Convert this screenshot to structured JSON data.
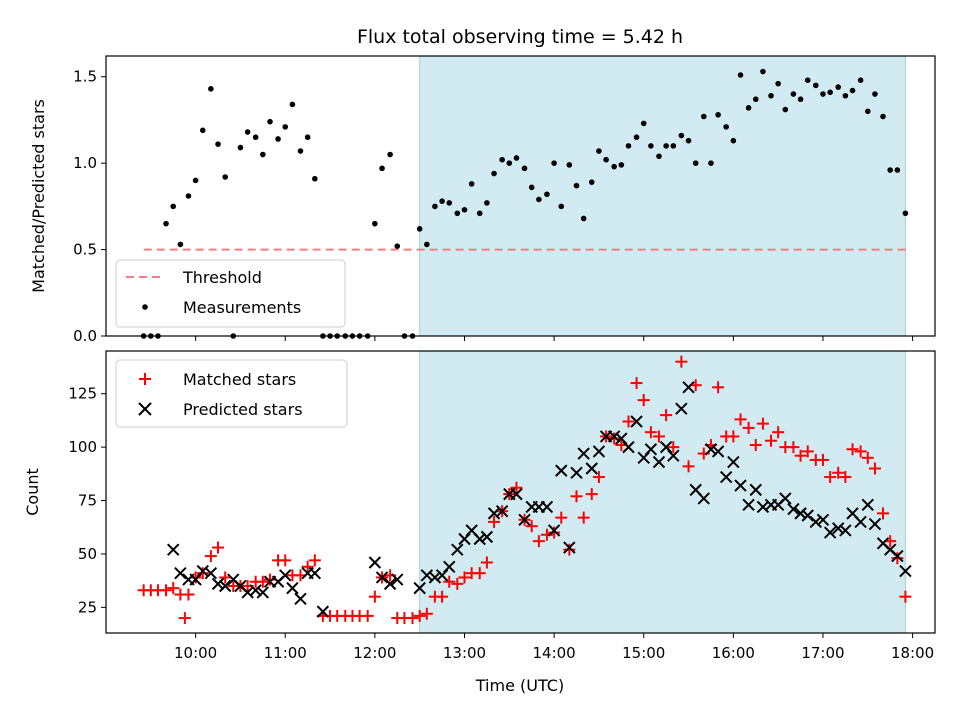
{
  "chart_data": {
    "type": "scatter",
    "title": "Flux total observing time = 5.42 h",
    "shared_x": {
      "label": "Time (UTC)",
      "range": [
        9.0,
        18.25
      ],
      "ticks": [
        10,
        11,
        12,
        13,
        14,
        15,
        16,
        17,
        18
      ],
      "tick_labels": [
        "10:00",
        "11:00",
        "12:00",
        "13:00",
        "14:00",
        "15:00",
        "16:00",
        "17:00",
        "18:00"
      ]
    },
    "observing_window": {
      "start": 12.5,
      "end": 17.92,
      "color": "#add8e6"
    },
    "top_panel": {
      "ylabel": "Matched/Predicted stars",
      "ylim": [
        0,
        1.62
      ],
      "yticks": [
        0.0,
        0.5,
        1.0,
        1.5
      ],
      "ytick_labels": [
        "0.0",
        "0.5",
        "1.0",
        "1.5"
      ],
      "threshold": {
        "name": "Threshold",
        "value": 0.5,
        "x_start": 9.42,
        "x_end": 17.92,
        "color": "#f08080"
      },
      "measurements": {
        "name": "Measurements",
        "color": "#000000",
        "x": [
          9.42,
          9.5,
          9.58,
          9.67,
          9.75,
          9.83,
          9.92,
          10.0,
          10.08,
          10.17,
          10.25,
          10.33,
          10.42,
          10.5,
          10.58,
          10.67,
          10.75,
          10.83,
          10.92,
          11.0,
          11.08,
          11.17,
          11.25,
          11.33,
          11.42,
          11.5,
          11.58,
          11.67,
          11.75,
          11.83,
          11.92,
          12.0,
          12.08,
          12.17,
          12.25,
          12.33,
          12.42,
          12.5,
          12.58,
          12.67,
          12.75,
          12.83,
          12.92,
          13.0,
          13.08,
          13.17,
          13.25,
          13.33,
          13.42,
          13.5,
          13.58,
          13.67,
          13.75,
          13.83,
          13.92,
          14.0,
          14.08,
          14.17,
          14.25,
          14.33,
          14.42,
          14.5,
          14.58,
          14.67,
          14.75,
          14.83,
          14.92,
          15.0,
          15.08,
          15.17,
          15.25,
          15.33,
          15.42,
          15.5,
          15.58,
          15.67,
          15.75,
          15.83,
          15.92,
          16.0,
          16.08,
          16.17,
          16.25,
          16.33,
          16.42,
          16.5,
          16.58,
          16.67,
          16.75,
          16.83,
          16.92,
          17.0,
          17.08,
          17.17,
          17.25,
          17.33,
          17.42,
          17.5,
          17.58,
          17.67,
          17.75,
          17.83,
          17.92
        ],
        "y": [
          0.0,
          0.0,
          0.0,
          0.65,
          0.75,
          0.53,
          0.81,
          0.9,
          1.19,
          1.43,
          1.11,
          0.92,
          0.0,
          1.09,
          1.18,
          1.15,
          1.05,
          1.24,
          1.14,
          1.21,
          1.34,
          1.07,
          1.15,
          0.91,
          0.0,
          0.0,
          0.0,
          0.0,
          0.0,
          0.0,
          0.0,
          0.65,
          0.97,
          1.05,
          0.52,
          0.0,
          0.0,
          0.62,
          0.53,
          0.75,
          0.78,
          0.77,
          0.71,
          0.73,
          0.88,
          0.71,
          0.77,
          0.94,
          1.02,
          1.0,
          1.03,
          0.97,
          0.86,
          0.79,
          0.82,
          1.0,
          0.75,
          0.99,
          0.87,
          0.68,
          0.89,
          1.07,
          1.02,
          0.98,
          0.99,
          1.1,
          1.15,
          1.23,
          1.1,
          1.04,
          1.1,
          1.1,
          1.16,
          1.13,
          1.0,
          1.27,
          1.0,
          1.28,
          1.21,
          1.13,
          1.51,
          1.32,
          1.37,
          1.53,
          1.39,
          1.46,
          1.31,
          1.4,
          1.37,
          1.48,
          1.45,
          1.4,
          1.41,
          1.44,
          1.39,
          1.42,
          1.48,
          1.3,
          1.4,
          1.27,
          0.96,
          0.96,
          0.71
        ]
      },
      "legend": [
        "Threshold",
        "Measurements"
      ],
      "legend_position": "lower-left"
    },
    "bottom_panel": {
      "ylabel": "Count",
      "ylim": [
        13,
        145
      ],
      "yticks": [
        25,
        50,
        75,
        100,
        125
      ],
      "ytick_labels": [
        "25",
        "50",
        "75",
        "100",
        "125"
      ],
      "series": [
        {
          "name": "Matched stars",
          "marker": "plus",
          "color": "#ff0000",
          "x": [
            9.42,
            9.5,
            9.58,
            9.67,
            9.75,
            9.83,
            9.88,
            9.92,
            10.0,
            10.08,
            10.17,
            10.25,
            10.33,
            10.42,
            10.5,
            10.58,
            10.67,
            10.75,
            10.83,
            10.92,
            11.0,
            11.08,
            11.17,
            11.25,
            11.33,
            11.42,
            11.5,
            11.58,
            11.67,
            11.75,
            11.83,
            11.92,
            12.0,
            12.08,
            12.17,
            12.25,
            12.33,
            12.42,
            12.5,
            12.58,
            12.67,
            12.75,
            12.83,
            12.92,
            13.0,
            13.08,
            13.17,
            13.25,
            13.33,
            13.42,
            13.5,
            13.58,
            13.67,
            13.75,
            13.83,
            13.92,
            14.0,
            14.08,
            14.17,
            14.25,
            14.33,
            14.42,
            14.5,
            14.58,
            14.67,
            14.75,
            14.83,
            14.92,
            15.0,
            15.08,
            15.17,
            15.25,
            15.33,
            15.42,
            15.5,
            15.58,
            15.67,
            15.75,
            15.83,
            15.92,
            16.0,
            16.08,
            16.17,
            16.25,
            16.33,
            16.42,
            16.5,
            16.58,
            16.67,
            16.75,
            16.83,
            16.92,
            17.0,
            17.08,
            17.17,
            17.25,
            17.33,
            17.42,
            17.5,
            17.58,
            17.67,
            17.75,
            17.83,
            17.92
          ],
          "y": [
            33,
            33,
            33,
            33,
            34,
            31,
            20,
            31,
            39,
            41,
            49,
            53,
            39,
            35,
            35,
            35,
            37,
            37,
            38,
            47,
            47,
            40,
            40,
            44,
            47,
            21,
            21,
            21,
            21,
            21,
            21,
            21,
            30,
            39,
            40,
            20,
            20,
            20,
            21,
            22,
            30,
            30,
            37,
            36,
            39,
            41,
            41,
            46,
            65,
            70,
            78,
            81,
            66,
            63,
            56,
            59,
            60,
            67,
            52,
            77,
            67,
            78,
            86,
            105,
            104,
            101,
            112,
            130,
            122,
            107,
            105,
            115,
            100,
            140,
            91,
            129,
            97,
            101,
            128,
            105,
            105,
            113,
            109,
            101,
            111,
            103,
            107,
            100,
            100,
            96,
            98,
            94,
            94,
            86,
            88,
            86,
            99,
            98,
            95,
            90,
            69,
            56,
            48,
            30
          ]
        },
        {
          "name": "Predicted stars",
          "marker": "x",
          "color": "#000000",
          "x": [
            9.75,
            9.83,
            9.92,
            10.0,
            10.08,
            10.17,
            10.25,
            10.33,
            10.42,
            10.5,
            10.58,
            10.67,
            10.75,
            10.83,
            10.92,
            11.0,
            11.08,
            11.17,
            11.25,
            11.33,
            11.42,
            12.0,
            12.08,
            12.17,
            12.25,
            12.5,
            12.58,
            12.67,
            12.75,
            12.83,
            12.92,
            13.0,
            13.08,
            13.17,
            13.25,
            13.33,
            13.42,
            13.5,
            13.58,
            13.67,
            13.75,
            13.83,
            13.92,
            14.0,
            14.08,
            14.17,
            14.25,
            14.33,
            14.42,
            14.5,
            14.58,
            14.67,
            14.75,
            14.83,
            14.92,
            15.0,
            15.08,
            15.17,
            15.25,
            15.33,
            15.42,
            15.5,
            15.58,
            15.67,
            15.75,
            15.83,
            15.92,
            16.0,
            16.08,
            16.17,
            16.25,
            16.33,
            16.42,
            16.5,
            16.58,
            16.67,
            16.75,
            16.83,
            16.92,
            17.0,
            17.08,
            17.17,
            17.25,
            17.33,
            17.42,
            17.5,
            17.58,
            17.67,
            17.75,
            17.83,
            17.92
          ],
          "y": [
            52,
            41,
            38,
            38,
            42,
            41,
            36,
            35,
            38,
            35,
            32,
            33,
            32,
            37,
            37,
            40,
            34,
            29,
            41,
            41,
            23,
            46,
            39,
            36,
            38,
            34,
            40,
            39,
            40,
            44,
            52,
            57,
            61,
            57,
            58,
            69,
            70,
            78,
            78,
            66,
            72,
            72,
            72,
            61,
            89,
            53,
            88,
            97,
            90,
            98,
            105,
            105,
            104,
            100,
            112,
            95,
            99,
            93,
            100,
            96,
            118,
            128,
            80,
            76,
            99,
            98,
            86,
            93,
            82,
            73,
            80,
            72,
            73,
            73,
            76,
            71,
            69,
            68,
            65,
            66,
            60,
            62,
            61,
            69,
            65,
            73,
            64,
            55,
            52,
            49,
            42
          ]
        }
      ],
      "legend": [
        "Matched stars",
        "Predicted stars"
      ],
      "legend_position": "upper-left"
    }
  }
}
